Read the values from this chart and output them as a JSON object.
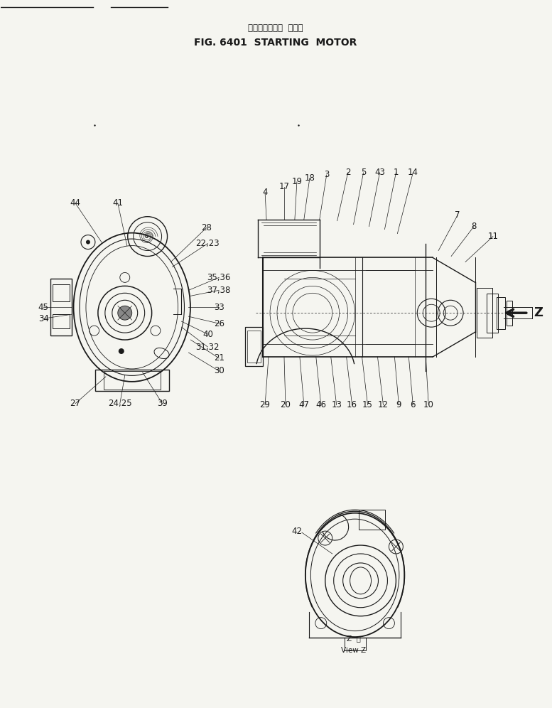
{
  "title_japanese": "スターティング  モータ",
  "title_english": "FIG. 6401  STARTING  MOTOR",
  "bg_color": "#f5f5f0",
  "line_color": "#1a1a1a",
  "view_z_japanese": "Z  矢",
  "view_z_english": "View Z",
  "figw": 7.77,
  "figh": 9.96,
  "dpi": 100
}
